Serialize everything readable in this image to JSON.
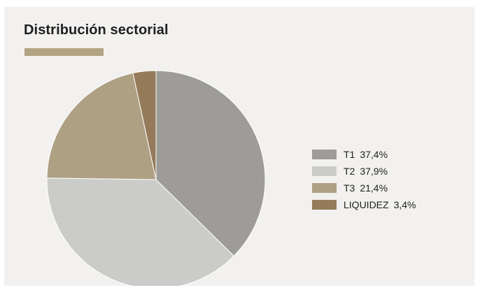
{
  "chart_data": {
    "type": "pie",
    "title": "Distribución sectorial",
    "categories": [
      "T1",
      "T2",
      "T3",
      "LIQUIDEZ"
    ],
    "values": [
      37.4,
      37.9,
      21.4,
      3.4
    ],
    "value_labels": [
      "37,4%",
      "37,9%",
      "21,4%",
      "3,4%"
    ],
    "colors": [
      "#9d9c99",
      "#cbcbca",
      "#aea083",
      "#957b5a"
    ],
    "accent_color": "#b2a382",
    "background_color": "#f2f1ef",
    "start_angle_deg": 0,
    "direction": "clockwise",
    "legend_position": "right"
  }
}
